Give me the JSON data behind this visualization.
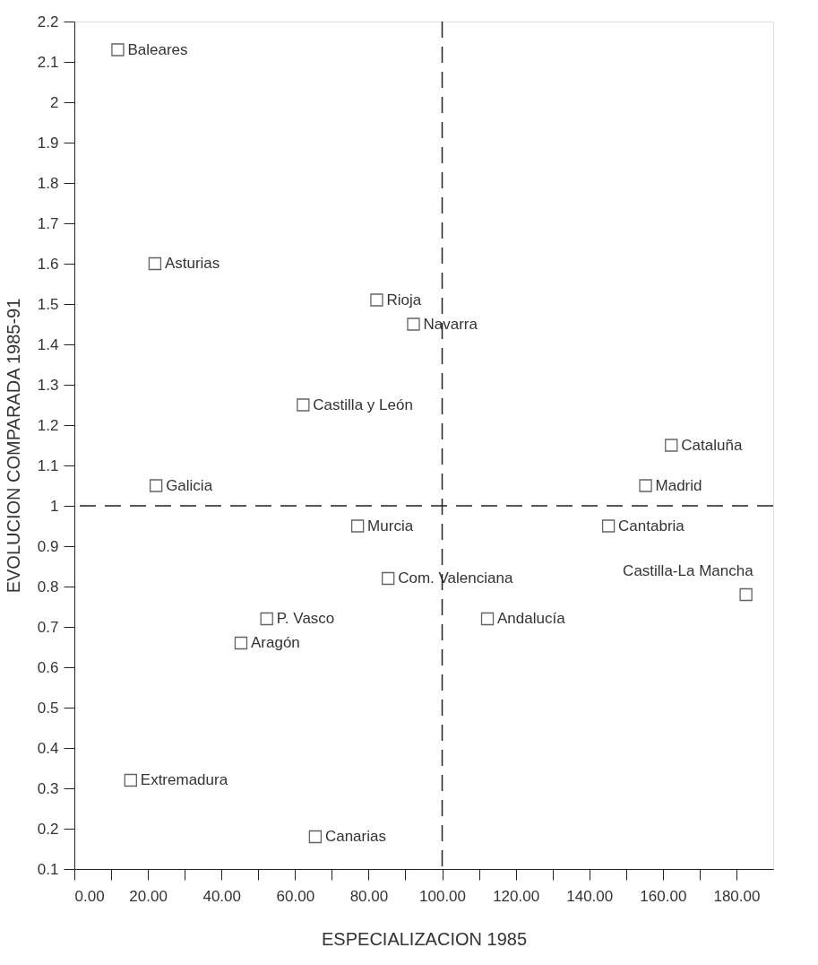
{
  "chart_data": {
    "type": "scatter",
    "xlabel": "ESPECIALIZACION 1985",
    "ylabel": "EVOLUCION COMPARADA 1985-91",
    "x": [
      11.8,
      21.9,
      82.2,
      92.2,
      62.2,
      22.2,
      162.3,
      155.3,
      77.0,
      85.3,
      52.3,
      45.3,
      15.3,
      65.5,
      145.2,
      182.6,
      112.3
    ],
    "values": [
      2.13,
      1.6,
      1.51,
      1.45,
      1.25,
      1.05,
      1.15,
      1.05,
      0.95,
      0.82,
      0.72,
      0.66,
      0.32,
      0.18,
      0.95,
      0.78,
      0.72
    ],
    "value_labels": [
      "Baleares",
      "Asturias",
      "Rioja",
      "Navarra",
      "Castilla y León",
      "Galicia",
      "Cataluña",
      "Madrid",
      "Murcia",
      "Com. Valenciana",
      "P. Vasco",
      "Aragón",
      "Extremadura",
      "Canarias",
      "Cantabria",
      "Castilla-La Mancha",
      "Andalucía"
    ],
    "color": "#222222",
    "marker": "square",
    "xlim": [
      0,
      190
    ],
    "xticks": [
      {
        "value": 0,
        "label": "0.00"
      },
      {
        "value": 10,
        "label": null
      },
      {
        "value": 20,
        "label": "20.00"
      },
      {
        "value": 30,
        "label": null
      },
      {
        "value": 40,
        "label": "40.00"
      },
      {
        "value": 50,
        "label": null
      },
      {
        "value": 60,
        "label": "60.00"
      },
      {
        "value": 70,
        "label": null
      },
      {
        "value": 80,
        "label": "80.00"
      },
      {
        "value": 90,
        "label": null
      },
      {
        "value": 100,
        "label": "100.00"
      },
      {
        "value": 110,
        "label": null
      },
      {
        "value": 120,
        "label": "120.00"
      },
      {
        "value": 130,
        "label": null
      },
      {
        "value": 140,
        "label": "140.00"
      },
      {
        "value": 150,
        "label": null
      },
      {
        "value": 160,
        "label": "160.00"
      },
      {
        "value": 170,
        "label": null
      },
      {
        "value": 180,
        "label": "180.00"
      }
    ],
    "ylim": [
      0.1,
      2.2
    ],
    "yticks": [
      0.1,
      0.2,
      0.3,
      0.4,
      0.5,
      0.6,
      0.7,
      0.8,
      0.9,
      1,
      1.1,
      1.2,
      1.3,
      1.4,
      1.5,
      1.6,
      1.7,
      1.8,
      1.9,
      2,
      2.1,
      2.2
    ],
    "ref_lines": [
      {
        "axis": "x",
        "value": 100,
        "color": "#222222",
        "line_style": "dashed"
      },
      {
        "axis": "y",
        "value": 1,
        "color": "#222222",
        "line_style": "dashed"
      }
    ],
    "grid": false
  }
}
